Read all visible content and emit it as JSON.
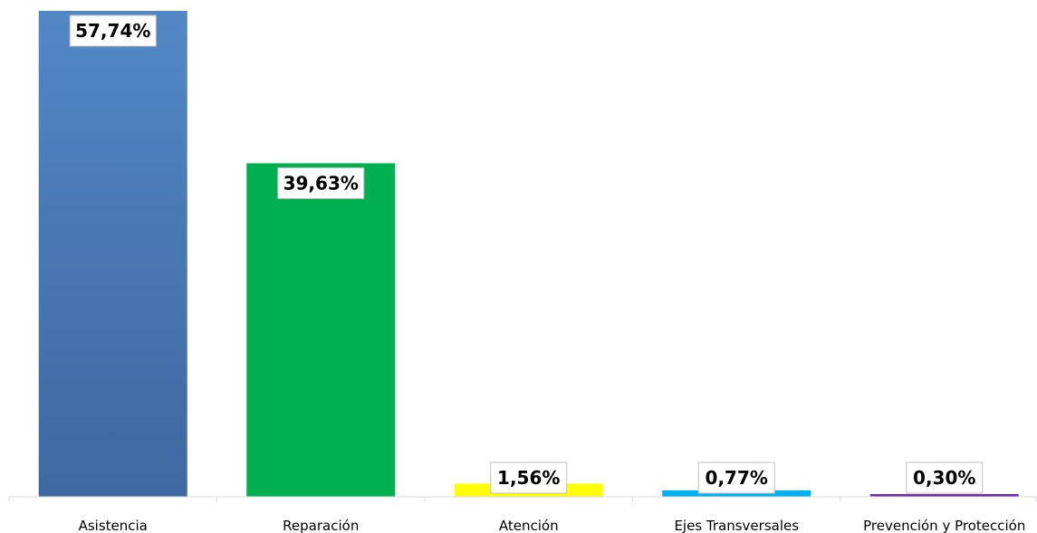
{
  "chart_data": {
    "type": "bar",
    "title": "",
    "xlabel": "",
    "ylabel": "",
    "ylim": [
      0,
      57.74
    ],
    "grid": false,
    "legend": "none",
    "categories": [
      "Asistencia",
      "Reparación",
      "Atención",
      "Ejes Transversales",
      "Prevención y Protección"
    ],
    "values": [
      57.74,
      39.63,
      1.56,
      0.77,
      0.3
    ],
    "data_labels": [
      "57,74%",
      "39,63%",
      "1,56%",
      "0,77%",
      "0,30%"
    ],
    "colors": [
      "#4f81bd",
      "#00b050",
      "#ffff00",
      "#00b0f0",
      "#7030a0"
    ]
  }
}
